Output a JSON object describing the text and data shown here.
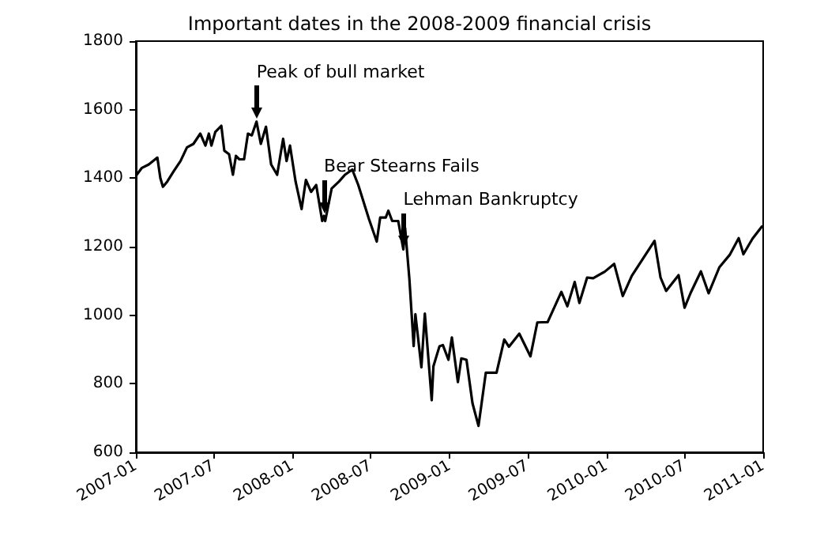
{
  "chart_data": {
    "type": "line",
    "title": "Important dates in the 2008-2009 financial crisis",
    "x": [
      "2007-01-03",
      "2007-01-15",
      "2007-01-31",
      "2007-02-20",
      "2007-02-27",
      "2007-03-05",
      "2007-03-15",
      "2007-03-30",
      "2007-04-15",
      "2007-04-30",
      "2007-05-15",
      "2007-05-31",
      "2007-06-12",
      "2007-06-20",
      "2007-06-26",
      "2007-07-05",
      "2007-07-19",
      "2007-07-26",
      "2007-08-06",
      "2007-08-15",
      "2007-08-22",
      "2007-08-30",
      "2007-09-10",
      "2007-09-19",
      "2007-09-28",
      "2007-10-09",
      "2007-10-19",
      "2007-10-31",
      "2007-11-12",
      "2007-11-26",
      "2007-12-10",
      "2007-12-18",
      "2007-12-26",
      "2008-01-08",
      "2008-01-22",
      "2008-02-01",
      "2008-02-13",
      "2008-02-25",
      "2008-03-10",
      "2008-03-14",
      "2008-03-17",
      "2008-04-01",
      "2008-04-18",
      "2008-05-02",
      "2008-05-19",
      "2008-06-02",
      "2008-06-12",
      "2008-06-27",
      "2008-07-15",
      "2008-07-23",
      "2008-08-05",
      "2008-08-11",
      "2008-08-20",
      "2008-09-03",
      "2008-09-15",
      "2008-09-19",
      "2008-09-29",
      "2008-10-09",
      "2008-10-13",
      "2008-10-27",
      "2008-11-04",
      "2008-11-20",
      "2008-11-24",
      "2008-12-08",
      "2008-12-16",
      "2008-12-29",
      "2009-01-06",
      "2009-01-20",
      "2009-01-28",
      "2009-02-09",
      "2009-02-23",
      "2009-03-09",
      "2009-03-26",
      "2009-04-20",
      "2009-05-08",
      "2009-05-19",
      "2009-06-12",
      "2009-07-08",
      "2009-07-24",
      "2009-08-17",
      "2009-09-18",
      "2009-10-02",
      "2009-10-19",
      "2009-10-30",
      "2009-11-17",
      "2009-12-01",
      "2009-12-28",
      "2010-01-19",
      "2010-02-08",
      "2010-03-01",
      "2010-04-23",
      "2010-05-07",
      "2010-05-20",
      "2010-06-18",
      "2010-07-02",
      "2010-07-16",
      "2010-08-09",
      "2010-08-27",
      "2010-09-21",
      "2010-10-15",
      "2010-11-05",
      "2010-11-16",
      "2010-12-07",
      "2010-12-29"
    ],
    "series": [
      {
        "color": "#000000",
        "values": [
          1410,
          1430,
          1440,
          1460,
          1400,
          1375,
          1390,
          1420,
          1450,
          1490,
          1500,
          1530,
          1495,
          1530,
          1495,
          1535,
          1553,
          1480,
          1470,
          1410,
          1465,
          1455,
          1455,
          1530,
          1525,
          1565,
          1500,
          1550,
          1440,
          1410,
          1515,
          1450,
          1495,
          1390,
          1310,
          1395,
          1360,
          1380,
          1275,
          1290,
          1275,
          1370,
          1390,
          1410,
          1425,
          1380,
          1340,
          1280,
          1215,
          1285,
          1285,
          1305,
          1275,
          1275,
          1192,
          1255,
          1106,
          910,
          1003,
          848,
          1005,
          752,
          851,
          909,
          913,
          870,
          935,
          805,
          874,
          870,
          743,
          677,
          832,
          832,
          929,
          908,
          946,
          880,
          979,
          980,
          1068,
          1026,
          1097,
          1036,
          1110,
          1108,
          1127,
          1150,
          1056,
          1115,
          1217,
          1110,
          1071,
          1117,
          1022,
          1065,
          1128,
          1064,
          1140,
          1176,
          1225,
          1178,
          1223,
          1259
        ]
      }
    ],
    "xlim": [
      "2007-01",
      "2011-01"
    ],
    "xticks": [
      "2007-01",
      "2007-07",
      "2008-01",
      "2008-07",
      "2009-01",
      "2009-07",
      "2010-01",
      "2010-07",
      "2011-01"
    ],
    "ylim": [
      600,
      1800
    ],
    "yticks": [
      600,
      800,
      1000,
      1200,
      1400,
      1600,
      1800
    ],
    "annotations": [
      {
        "text": "Peak of bull market",
        "x": "2007-10-09",
        "y": 1565
      },
      {
        "text": "Bear Stearns Fails",
        "x": "2008-03-14",
        "y": 1290
      },
      {
        "text": "Lehman Bankruptcy",
        "x": "2008-09-15",
        "y": 1192
      }
    ],
    "grid": false,
    "marker": "none",
    "line_style": "solid"
  }
}
